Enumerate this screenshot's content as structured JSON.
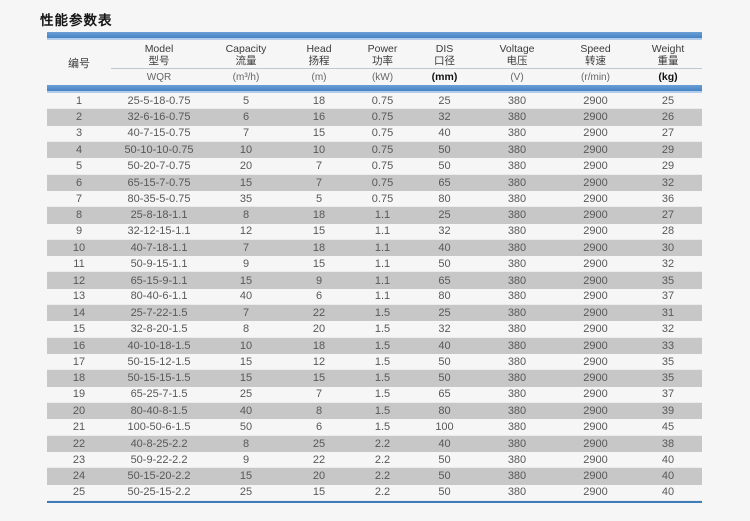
{
  "page": {
    "title": "性能参数表",
    "background": "#f6f6f6"
  },
  "colors": {
    "accent_bar_blue": "#4583c4",
    "accent_bar_light_edge": "#b3cce9",
    "bottom_rule_blue": "#3e7cbb",
    "stripe_gray": "#c7c7c7",
    "row_text": "#585858",
    "header_text": "#3c3c3c"
  },
  "chart_data": {
    "type": "table",
    "title": "性能参数表",
    "layout": {
      "striped_rows": "even rows gray",
      "header_rows": 2,
      "top_and_bottom_blue_rules": true
    },
    "columns": [
      {
        "en": "",
        "cn": "编号",
        "unit": ""
      },
      {
        "en": "Model",
        "cn": "型号",
        "unit": "WQR"
      },
      {
        "en": "Capacity",
        "cn": "流量",
        "unit": "(m³/h)"
      },
      {
        "en": "Head",
        "cn": "扬程",
        "unit": "(m)"
      },
      {
        "en": "Power",
        "cn": "功率",
        "unit": "(kW)"
      },
      {
        "en": "DIS",
        "cn": "口径",
        "unit": "(mm)",
        "unit_bold": true
      },
      {
        "en": "Voltage",
        "cn": "电压",
        "unit": "(V)"
      },
      {
        "en": "Speed",
        "cn": "转速",
        "unit": "(r/min)"
      },
      {
        "en": "Weight",
        "cn": "重量",
        "unit": "(kg)",
        "unit_bold": true
      }
    ],
    "rows": [
      [
        "1",
        "25-5-18-0.75",
        "5",
        "18",
        "0.75",
        "25",
        "380",
        "2900",
        "25"
      ],
      [
        "2",
        "32-6-16-0.75",
        "6",
        "16",
        "0.75",
        "32",
        "380",
        "2900",
        "26"
      ],
      [
        "3",
        "40-7-15-0.75",
        "7",
        "15",
        "0.75",
        "40",
        "380",
        "2900",
        "27"
      ],
      [
        "4",
        "50-10-10-0.75",
        "10",
        "10",
        "0.75",
        "50",
        "380",
        "2900",
        "29"
      ],
      [
        "5",
        "50-20-7-0.75",
        "20",
        "7",
        "0.75",
        "50",
        "380",
        "2900",
        "29"
      ],
      [
        "6",
        "65-15-7-0.75",
        "15",
        "7",
        "0.75",
        "65",
        "380",
        "2900",
        "32"
      ],
      [
        "7",
        "80-35-5-0.75",
        "35",
        "5",
        "0.75",
        "80",
        "380",
        "2900",
        "36"
      ],
      [
        "8",
        "25-8-18-1.1",
        "8",
        "18",
        "1.1",
        "25",
        "380",
        "2900",
        "27"
      ],
      [
        "9",
        "32-12-15-1.1",
        "12",
        "15",
        "1.1",
        "32",
        "380",
        "2900",
        "28"
      ],
      [
        "10",
        "40-7-18-1.1",
        "7",
        "18",
        "1.1",
        "40",
        "380",
        "2900",
        "30"
      ],
      [
        "11",
        "50-9-15-1.1",
        "9",
        "15",
        "1.1",
        "50",
        "380",
        "2900",
        "32"
      ],
      [
        "12",
        "65-15-9-1.1",
        "15",
        "9",
        "1.1",
        "65",
        "380",
        "2900",
        "35"
      ],
      [
        "13",
        "80-40-6-1.1",
        "40",
        "6",
        "1.1",
        "80",
        "380",
        "2900",
        "37"
      ],
      [
        "14",
        "25-7-22-1.5",
        "7",
        "22",
        "1.5",
        "25",
        "380",
        "2900",
        "31"
      ],
      [
        "15",
        "32-8-20-1.5",
        "8",
        "20",
        "1.5",
        "32",
        "380",
        "2900",
        "32"
      ],
      [
        "16",
        "40-10-18-1.5",
        "10",
        "18",
        "1.5",
        "40",
        "380",
        "2900",
        "33"
      ],
      [
        "17",
        "50-15-12-1.5",
        "15",
        "12",
        "1.5",
        "50",
        "380",
        "2900",
        "35"
      ],
      [
        "18",
        "50-15-15-1.5",
        "15",
        "15",
        "1.5",
        "50",
        "380",
        "2900",
        "35"
      ],
      [
        "19",
        "65-25-7-1.5",
        "25",
        "7",
        "1.5",
        "65",
        "380",
        "2900",
        "37"
      ],
      [
        "20",
        "80-40-8-1.5",
        "40",
        "8",
        "1.5",
        "80",
        "380",
        "2900",
        "39"
      ],
      [
        "21",
        "100-50-6-1.5",
        "50",
        "6",
        "1.5",
        "100",
        "380",
        "2900",
        "45"
      ],
      [
        "22",
        "40-8-25-2.2",
        "8",
        "25",
        "2.2",
        "40",
        "380",
        "2900",
        "38"
      ],
      [
        "23",
        "50-9-22-2.2",
        "9",
        "22",
        "2.2",
        "50",
        "380",
        "2900",
        "40"
      ],
      [
        "24",
        "50-15-20-2.2",
        "15",
        "20",
        "2.2",
        "50",
        "380",
        "2900",
        "40"
      ],
      [
        "25",
        "50-25-15-2.2",
        "25",
        "15",
        "2.2",
        "50",
        "380",
        "2900",
        "40"
      ]
    ]
  }
}
